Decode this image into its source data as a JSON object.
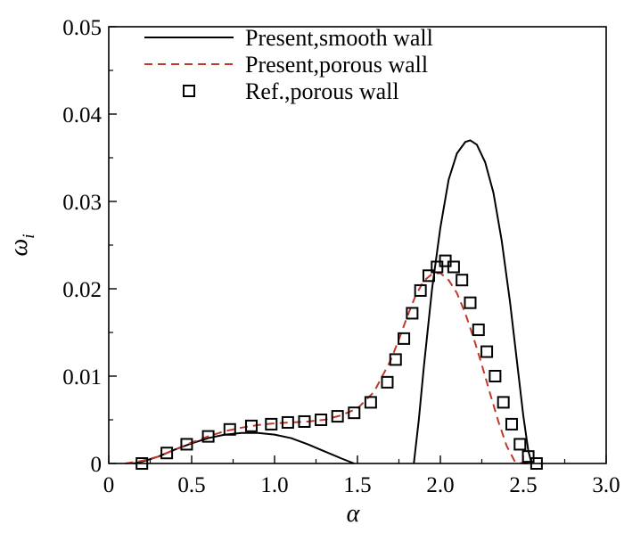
{
  "chart_data": {
    "type": "line",
    "xlabel": "α",
    "ylabel_symbol": "ω",
    "ylabel_subscript": "i",
    "xlim": [
      0,
      3.0
    ],
    "ylim": [
      0,
      0.05
    ],
    "x_ticks": [
      {
        "value": 0,
        "label": "0"
      },
      {
        "value": 0.5,
        "label": "0.5"
      },
      {
        "value": 1.0,
        "label": "1.0"
      },
      {
        "value": 1.5,
        "label": "1.5"
      },
      {
        "value": 2.0,
        "label": "2.0"
      },
      {
        "value": 2.5,
        "label": "2.5"
      },
      {
        "value": 3.0,
        "label": "3.0"
      }
    ],
    "y_ticks": [
      {
        "value": 0,
        "label": "0"
      },
      {
        "value": 0.01,
        "label": "0.01"
      },
      {
        "value": 0.02,
        "label": "0.02"
      },
      {
        "value": 0.03,
        "label": "0.03"
      },
      {
        "value": 0.04,
        "label": "0.04"
      },
      {
        "value": 0.05,
        "label": "0.05"
      }
    ],
    "grid": false,
    "legend_position": "top-right",
    "series": [
      {
        "name": "Present,smooth wall",
        "style": "solid-line",
        "color": "#000000",
        "segments": [
          {
            "x": [
              0.15,
              0.2,
              0.3,
              0.4,
              0.5,
              0.6,
              0.7,
              0.8,
              0.9,
              1.0,
              1.1,
              1.2,
              1.3,
              1.4,
              1.48
            ],
            "y": [
              0,
              0.0002,
              0.0008,
              0.0016,
              0.0023,
              0.0029,
              0.0033,
              0.0035,
              0.0035,
              0.0033,
              0.0029,
              0.0022,
              0.0014,
              0.0006,
              0
            ]
          },
          {
            "x": [
              1.84,
              1.87,
              1.9,
              1.95,
              2.0,
              2.05,
              2.1,
              2.15,
              2.18,
              2.22,
              2.27,
              2.32,
              2.37,
              2.42,
              2.46,
              2.5,
              2.53,
              2.55
            ],
            "y": [
              0,
              0.005,
              0.011,
              0.02,
              0.027,
              0.0325,
              0.0355,
              0.0368,
              0.037,
              0.0365,
              0.0345,
              0.031,
              0.0255,
              0.0185,
              0.012,
              0.0055,
              0.0015,
              0
            ]
          }
        ]
      },
      {
        "name": "Present,porous wall",
        "style": "dashed-line",
        "color": "#c0392b",
        "x": [
          0.1,
          0.2,
          0.3,
          0.4,
          0.5,
          0.6,
          0.7,
          0.8,
          0.9,
          1.0,
          1.1,
          1.2,
          1.3,
          1.4,
          1.5,
          1.6,
          1.7,
          1.75,
          1.8,
          1.85,
          1.9,
          1.95,
          2.0,
          2.05,
          2.1,
          2.15,
          2.2,
          2.25,
          2.3,
          2.35,
          2.4,
          2.45,
          2.5,
          2.55
        ],
        "y": [
          0,
          0.0003,
          0.0008,
          0.0016,
          0.0024,
          0.0031,
          0.0037,
          0.0041,
          0.0044,
          0.0046,
          0.0047,
          0.0048,
          0.005,
          0.0055,
          0.0063,
          0.0082,
          0.0118,
          0.0142,
          0.0168,
          0.0192,
          0.0209,
          0.0217,
          0.0218,
          0.021,
          0.0195,
          0.0172,
          0.0144,
          0.0113,
          0.008,
          0.0048,
          0.002,
          0.0002,
          0,
          0
        ]
      },
      {
        "name": "Ref.,porous wall",
        "style": "open-square-markers",
        "color": "#000000",
        "x": [
          0.2,
          0.35,
          0.47,
          0.6,
          0.73,
          0.86,
          0.98,
          1.08,
          1.18,
          1.28,
          1.38,
          1.48,
          1.58,
          1.68,
          1.73,
          1.78,
          1.83,
          1.88,
          1.93,
          1.98,
          2.03,
          2.08,
          2.13,
          2.18,
          2.23,
          2.28,
          2.33,
          2.38,
          2.43,
          2.48,
          2.53,
          2.58
        ],
        "y": [
          0,
          0.0012,
          0.0022,
          0.0031,
          0.0039,
          0.0043,
          0.0045,
          0.0047,
          0.0048,
          0.005,
          0.0054,
          0.0058,
          0.007,
          0.0093,
          0.0119,
          0.0143,
          0.0172,
          0.0198,
          0.0215,
          0.0225,
          0.0232,
          0.0225,
          0.021,
          0.0184,
          0.0153,
          0.0128,
          0.01,
          0.007,
          0.0045,
          0.0022,
          0.0008,
          0
        ]
      }
    ]
  }
}
